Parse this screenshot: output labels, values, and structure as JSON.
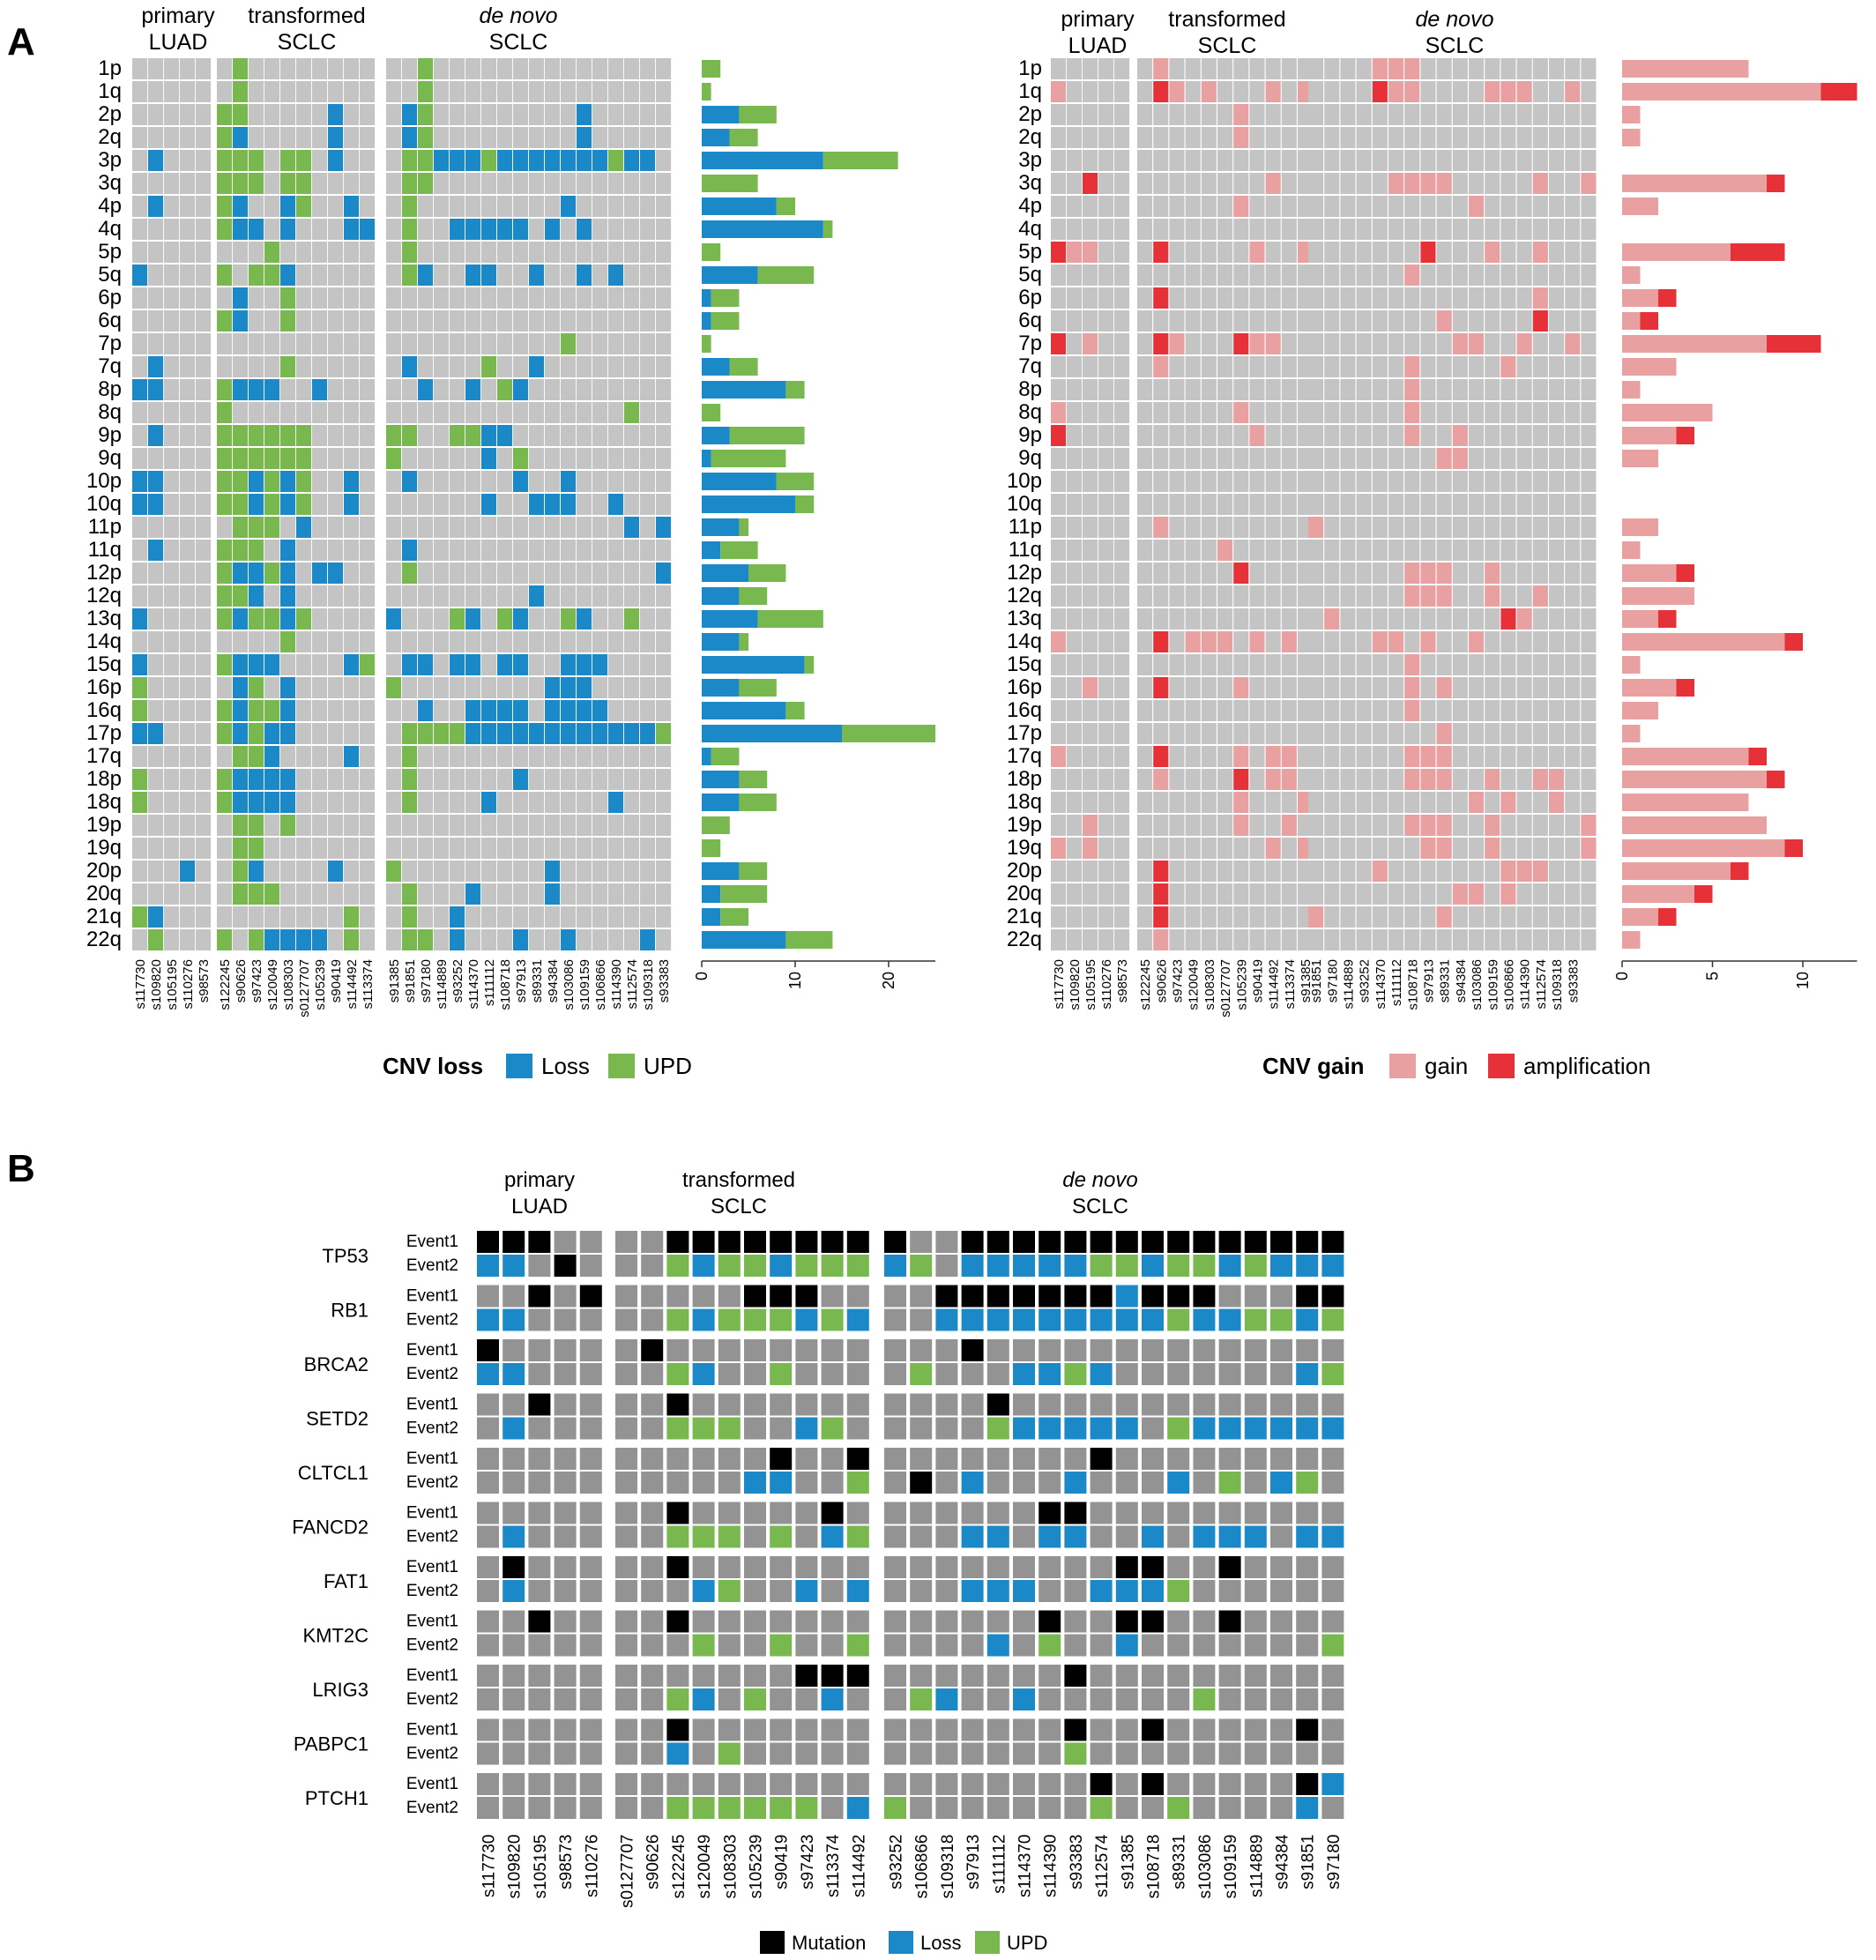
{
  "colors": {
    "cell_empty": "#c4c4c4",
    "cell_empty_b": "#939393",
    "loss": "#1b88c8",
    "upd": "#79b84f",
    "gain": "#e8a0a0",
    "amplification": "#e63138",
    "mutation": "#000000"
  },
  "panelA": {
    "label": "A",
    "groups": [
      {
        "l1": "primary",
        "l2": "LUAD",
        "italic": false
      },
      {
        "l1": "transformed",
        "l2": "SCLC",
        "italic": false
      },
      {
        "l1": "de novo",
        "l2": "SCLC",
        "italic": true
      }
    ],
    "arms": [
      "1p",
      "1q",
      "2p",
      "2q",
      "3p",
      "3q",
      "4p",
      "4q",
      "5p",
      "5q",
      "6p",
      "6q",
      "7p",
      "7q",
      "8p",
      "8q",
      "9p",
      "9q",
      "10p",
      "10q",
      "11p",
      "11q",
      "12p",
      "12q",
      "13q",
      "14q",
      "15q",
      "16p",
      "16q",
      "17p",
      "17q",
      "18p",
      "18q",
      "19p",
      "19q",
      "20p",
      "20q",
      "21q",
      "22q"
    ],
    "samples_left": [
      "s117730",
      "s109820",
      "s105195",
      "s110276",
      "s98573",
      "s122245",
      "s90626",
      "s97423",
      "s120049",
      "s108303",
      "s0127707",
      "s105239",
      "s90419",
      "s114492",
      "s113374",
      "s91385",
      "s91851",
      "s97180",
      "s114889",
      "s93252",
      "s114370",
      "s111112",
      "s108718",
      "s97913",
      "s89331",
      "s94384",
      "s103086",
      "s109159",
      "s106866",
      "s114390",
      "s112574",
      "s109318",
      "s93383"
    ],
    "samples_right": [
      "s117730",
      "s109820",
      "s105195",
      "s110276",
      "s98573",
      "s122245",
      "s90626",
      "s97423",
      "s120049",
      "s108303",
      "s0127707",
      "s105239",
      "s90419",
      "s114492",
      "s113374",
      "s91385",
      "s91851",
      "s97180",
      "s114889",
      "s93252",
      "s114370",
      "s111112",
      "s108718",
      "s97913",
      "s89331",
      "s94384",
      "s103086",
      "s109159",
      "s106866",
      "s114390",
      "s112574",
      "s109318",
      "s93383"
    ],
    "loss_legend": {
      "title": "CNV loss",
      "items": [
        "Loss",
        "UPD"
      ]
    },
    "gain_legend": {
      "title": "CNV gain",
      "items": [
        "gain",
        "amplification"
      ]
    },
    "loss_matrix": [
      "......U..........U...............",
      "......U..........U...............",
      ".....UU.....L...LU.........L.....",
      ".....UL.....L...LU.........L.....",
      ".L...UUU.UU.L...UULLLULLLLLLLULL.",
      ".....UUU.UU.....UU...............",
      ".L...UL..LU..L..U.........L......",
      ".....ULL.L...LL.U..LLLLL.L.L.....",
      "........U.......U................",
      "L....U.UUL......UL..LL..L..L.L...",
      "......L..U.......................",
      ".....UL..U.......................",
      "..........................U......",
      ".L.......U......L....U..L........",
      "LL...ULLL..L.....L..L.UL.........",
      ".....U........................U..",
      ".L...UUUUUU....UU..UULL..........",
      ".....UUUUUU....U.....L.U.........",
      "LL...UULULU..L..L......L..L......",
      "LL...UULULU..L.......L..LLL..L...",
      "......UUU.L...................L.L",
      ".L...UUU.L......L................",
      ".....ULLUL.LL...U...............LL",
      ".....UUL.L..............L........",
      "L....ULUULU....L...UL.UL..UL..U..",
      ".........U.......................",
      "L....ULLL....LU.LL.LL.LL..LLL....",
      "U.....LU.L.....U.........LLL.....",
      "U....ULUUL.......L..LLLL.LLLL....",
      "LL...ULULL......UUUULLLLLLLLLLLLU",
      "......UUL....L..U................",
      "U....ULLLL......U......L.........",
      "U....ULLLL......U....L.......L...",
      "......UU.U.......................",
      "......UU.........................",
      "...L..UL....L..U.........L.......",
      "......UUU.......U...L....L.......",
      "UL...........U..U..L.............",
      ".U...U.ULLLL.U..UU.L...L..L....L."
    ],
    "gain_matrix": [
      "......G.............GGG...........",
      "G.....AG.G...G.G....AGG....GGG..G.",
      "...........G......................",
      "...........G......................",
      "..................................",
      "..A..........G.......GGGG.....G..G",
      "...........G..............G.......",
      "..................................",
      "AGG...A.....G..G.......A...G..G...",
      "......................G...........",
      "......A.......................G...G",
      "........................G.....A....",
      "A.G...AG...AGG...........GG..G..G..",
      "......G...............G.....G.....",
      "......................G...........",
      "G..........G..........G...........",
      "A...........G.........G..G........",
      "........................GG........",
      "..................................",
      "..................................",
      "......G.........G.................",
      "..........G.......................",
      "...........A..........GGG..G......",
      "......................GGG..G..G...",
      ".................G..........AG....",
      "G.....A.GGG.G.G.....GG.G..G.......",
      "......................G...........",
      "..G...A....G..........G.G..........",
      "......................G...........",
      "........................G.........",
      "G.....A....G.GG.......GGG.........",
      "......G....A.GG.......GGG..G..GG..",
      "...........G...G..........G.G..G..",
      "..G........G..G.......GGG..G.....G",
      "G.G..........G.G.......GG..G.....G",
      "......A.............G.......GGG...",
      "......A..................GG.G.....",
      "......A.........G.......G.........",
      "......G..........................."
    ],
    "loss_bar": {
      "ticks": [
        0,
        10,
        20
      ],
      "loss": [
        0,
        0,
        4,
        3,
        13,
        0,
        8,
        13,
        0,
        6,
        1,
        1,
        0,
        3,
        9,
        0,
        3,
        1,
        8,
        10,
        4,
        2,
        5,
        4,
        6,
        4,
        11,
        4,
        9,
        15,
        1,
        4,
        4,
        0,
        0,
        4,
        2,
        2,
        9
      ],
      "upd": [
        2,
        1,
        4,
        3,
        8,
        6,
        2,
        1,
        2,
        6,
        3,
        3,
        1,
        3,
        2,
        2,
        8,
        8,
        4,
        2,
        1,
        4,
        4,
        3,
        7,
        1,
        1,
        4,
        2,
        10,
        3,
        3,
        4,
        3,
        2,
        3,
        5,
        3,
        5
      ]
    },
    "gain_bar": {
      "ticks": [
        0,
        5,
        10
      ],
      "gain": [
        7,
        11,
        1,
        1,
        0,
        8,
        2,
        0,
        6,
        1,
        2,
        1,
        8,
        3,
        1,
        5,
        3,
        2,
        0,
        0,
        2,
        1,
        3,
        4,
        2,
        9,
        1,
        3,
        2,
        1,
        7,
        8,
        7,
        8,
        9,
        6,
        4,
        2,
        1
      ],
      "amp": [
        0,
        2,
        0,
        0,
        0,
        1,
        0,
        0,
        3,
        0,
        1,
        1,
        3,
        0,
        0,
        0,
        1,
        0,
        0,
        0,
        0,
        0,
        1,
        0,
        1,
        1,
        0,
        1,
        0,
        0,
        1,
        1,
        0,
        0,
        1,
        1,
        1,
        1,
        0
      ]
    }
  },
  "panelB": {
    "label": "B",
    "groups": [
      {
        "l1": "primary",
        "l2": "LUAD",
        "italic": false
      },
      {
        "l1": "transformed",
        "l2": "SCLC",
        "italic": false
      },
      {
        "l1": "de novo",
        "l2": "SCLC",
        "italic": true
      }
    ],
    "event_labels": [
      "Event1",
      "Event2"
    ],
    "genes": [
      "TP53",
      "RB1",
      "BRCA2",
      "SETD2",
      "CLTCL1",
      "FANCD2",
      "FAT1",
      "KMT2C",
      "LRIG3",
      "PABPC1",
      "PTCH1"
    ],
    "samples": [
      "s117730",
      "s109820",
      "s105195",
      "s98573",
      "s110276",
      "s0127707",
      "s90626",
      "s122245",
      "s120049",
      "s108303",
      "s105239",
      "s90419",
      "s97423",
      "s113374",
      "s114492",
      "s93252",
      "s106866",
      "s109318",
      "s97913",
      "s111112",
      "s114370",
      "s114390",
      "s93383",
      "s112574",
      "s91385",
      "s108718",
      "s89331",
      "s103086",
      "s109159",
      "s114889",
      "s94384",
      "s91851",
      "s97180"
    ],
    "legend": [
      "Mutation",
      "Loss",
      "UPD"
    ],
    "matrix": [
      "MMM....|MMMMMMMMM..|MMMMMMMMMMMMMMMMM..",
      "LL.M...|ULUULUUULU.|LLLLLUULUULULLLUU.U",
      "..M.M..|...MMM....M|MMMMMMLMMM...MM.M..",
      "LL.....|ULUUULUL..L|LLLLLLLLULLUULU.UU.",
      "M.....M|...........|M...............M..",
      "LL.....|UL..U....U..|.LLUL.......LUL.LLL",
      "..M....|M..........|.M..............M..",
      ".L.....|UUU..LU.....|ULLLLL.ULLLLLLL.U",
      ".......|....M..M...|.....M...........",
      ".......|...LL..U.M.|L...L...L.U.LU.UU",
      ".......|M.....M.....|..MM...............",
      ".L.....|UUU.U.LU...|LL.LL..L.LLL.LLLU",
      ".M.....|M..........|......MM..M......",
      ".L.....|.LU..L.L...|L|LL..LLLU......LL.",
      "..M....|M..........|...M..MM..M....M.",
      ".......|.U..U..U..|..L.U..L.......U..",
      ".......|.....MMM...|....M..........",
      ".......|UL.U..L..UL|..L......U.......",
      ".......|M..........|....M..M.....M.",
      ".......|L.U........|....U...........",
      ".......|...........|.....M.M.....ML",
      ".......|UUUUUU.LU...|....U..U....L..."
    ]
  }
}
